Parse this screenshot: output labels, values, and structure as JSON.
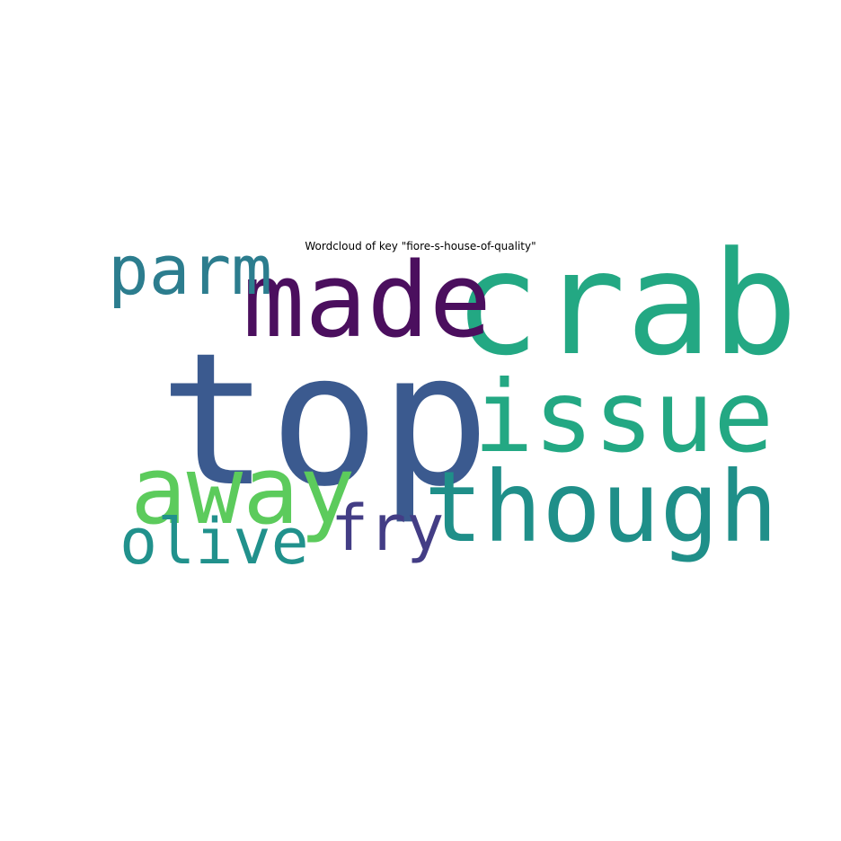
{
  "chart_data": {
    "type": "wordcloud",
    "title": "Wordcloud of key \"fiore-s-house-of-quality\"",
    "words": [
      {
        "text": "top",
        "weight": 1.0,
        "color": "#3b5a8f"
      },
      {
        "text": "crab",
        "weight": 0.78,
        "color": "#23a883"
      },
      {
        "text": "made",
        "weight": 0.58,
        "color": "#4b0f5e"
      },
      {
        "text": "issue",
        "weight": 0.55,
        "color": "#23a883"
      },
      {
        "text": "though",
        "weight": 0.55,
        "color": "#1f8f89"
      },
      {
        "text": "away",
        "weight": 0.52,
        "color": "#5ccb5c"
      },
      {
        "text": "parm",
        "weight": 0.38,
        "color": "#2c7d8e"
      },
      {
        "text": "olive",
        "weight": 0.35,
        "color": "#21918c"
      },
      {
        "text": "fry",
        "weight": 0.35,
        "color": "#433d85"
      }
    ]
  }
}
